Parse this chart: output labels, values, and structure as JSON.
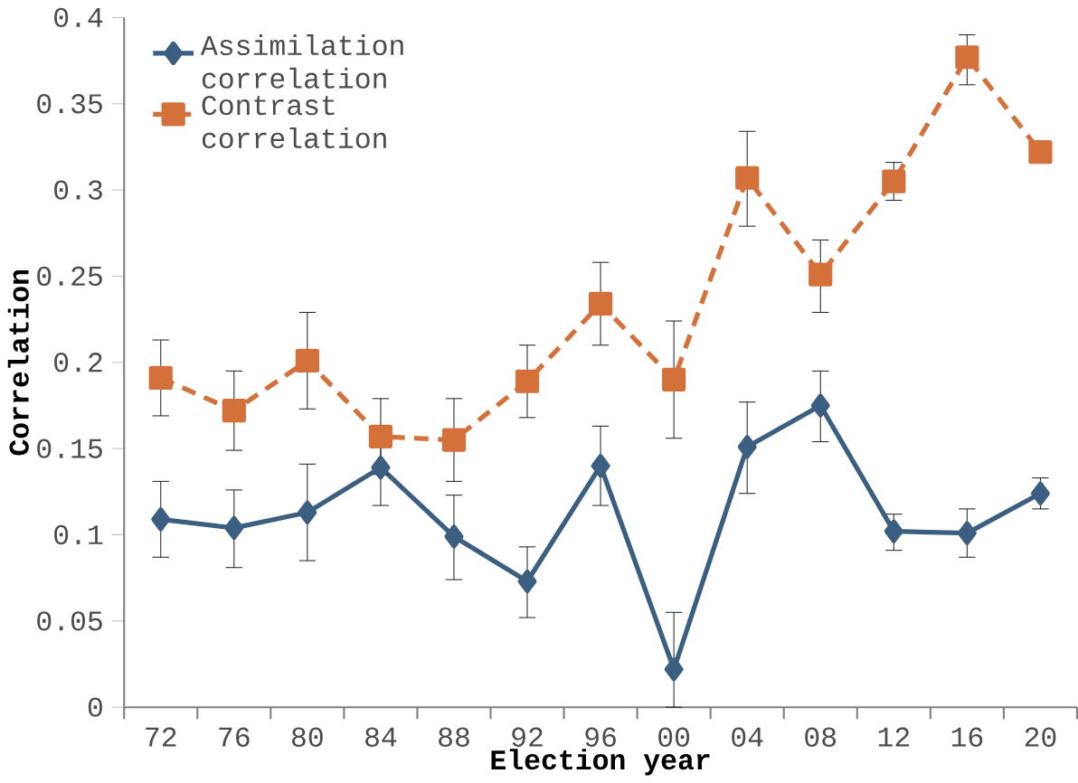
{
  "chart_data": {
    "type": "line",
    "xlabel": "Election year",
    "ylabel": "Correlation",
    "categories": [
      "72",
      "76",
      "80",
      "84",
      "88",
      "92",
      "96",
      "00",
      "04",
      "08",
      "12",
      "16",
      "20"
    ],
    "series": [
      {
        "name": "Assimilation correlation",
        "color": "#3b5f80",
        "marker": "diamond",
        "line_style": "solid",
        "values": [
          0.109,
          0.104,
          0.113,
          0.139,
          0.099,
          0.073,
          0.14,
          0.022,
          0.151,
          0.175,
          0.102,
          0.101,
          0.124
        ],
        "errors": [
          [
            0.087,
            0.131
          ],
          [
            0.081,
            0.126
          ],
          [
            0.085,
            0.141
          ],
          [
            0.117,
            0.161
          ],
          [
            0.074,
            0.123
          ],
          [
            0.052,
            0.093
          ],
          [
            0.117,
            0.163
          ],
          [
            0,
            0.055
          ],
          [
            0.124,
            0.177
          ],
          [
            0.154,
            0.195
          ],
          [
            0.091,
            0.112
          ],
          [
            0.087,
            0.115
          ],
          [
            0.115,
            0.133
          ]
        ]
      },
      {
        "name": "Contrast correlation",
        "color": "#d4703a",
        "marker": "square",
        "line_style": "dashed",
        "values": [
          0.191,
          0.172,
          0.201,
          0.157,
          0.155,
          0.189,
          0.234,
          0.19,
          0.307,
          0.251,
          0.305,
          0.377,
          0.322
        ],
        "errors": [
          [
            0.169,
            0.213
          ],
          [
            0.149,
            0.195
          ],
          [
            0.173,
            0.229
          ],
          [
            0.135,
            0.179
          ],
          [
            0.131,
            0.179
          ],
          [
            0.168,
            0.21
          ],
          [
            0.21,
            0.258
          ],
          [
            0.156,
            0.224
          ],
          [
            0.279,
            0.334
          ],
          [
            0.229,
            0.271
          ],
          [
            0.294,
            0.316
          ],
          [
            0.361,
            0.39
          ],
          null
        ]
      }
    ],
    "ylim": [
      0,
      0.4
    ],
    "yticks": [
      0,
      0.05,
      0.1,
      0.15,
      0.2,
      0.25,
      0.3,
      0.35,
      0.4
    ],
    "grid": false,
    "legend": "top left"
  }
}
